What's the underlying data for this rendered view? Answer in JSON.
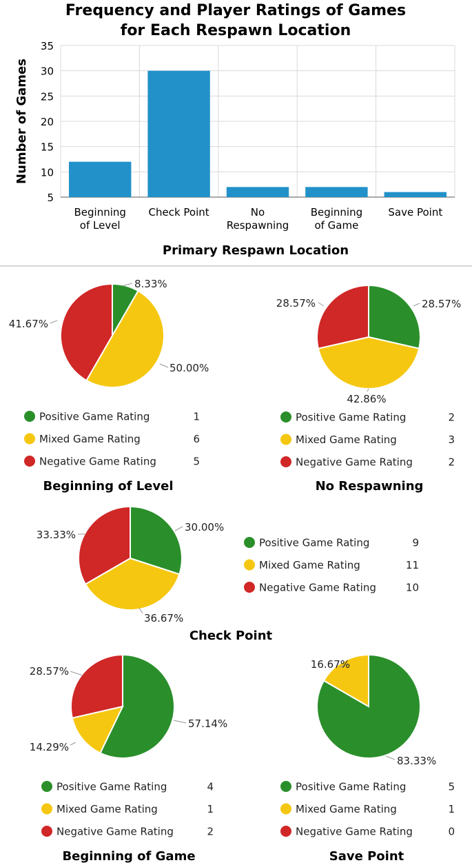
{
  "colors": {
    "bar": "#2291c9",
    "positive": "#2a8f2a",
    "mixed": "#f5c710",
    "negative": "#d02727",
    "grid": "#d9d9d9",
    "divider": "#c8c8c8"
  },
  "chart_data": [
    {
      "type": "bar",
      "title": [
        "Frequency and Player Ratings of Games",
        "for Each Respawn Location"
      ],
      "xlabel": "Primary Respawn Location",
      "ylabel": "Number of Games",
      "ylim": [
        5,
        35
      ],
      "yticks": [
        "35",
        "30",
        "25",
        "20",
        "15",
        "10",
        "5"
      ],
      "categories": [
        [
          "Beginning",
          "of Level"
        ],
        [
          "Check Point"
        ],
        [
          "No",
          "Respawning"
        ],
        [
          "Beginning",
          "of Game"
        ],
        [
          "Save Point"
        ]
      ],
      "values": [
        12,
        30,
        7,
        7,
        6
      ],
      "grid": true
    },
    {
      "type": "pie",
      "title": "Beginning of Level",
      "slices": [
        {
          "label": "Positive Game Rating",
          "value": 1,
          "percent": "8.33%",
          "color": "positive"
        },
        {
          "label": "Mixed Game Rating",
          "value": 6,
          "percent": "50.00%",
          "color": "mixed"
        },
        {
          "label": "Negative Game Rating",
          "value": 5,
          "percent": "41.67%",
          "color": "negative"
        }
      ]
    },
    {
      "type": "pie",
      "title": "No Respawning",
      "slices": [
        {
          "label": "Positive Game Rating",
          "value": 2,
          "percent": "28.57%",
          "color": "positive"
        },
        {
          "label": "Mixed Game Rating",
          "value": 3,
          "percent": "42.86%",
          "color": "mixed"
        },
        {
          "label": "Negative Game Rating",
          "value": 2,
          "percent": "28.57%",
          "color": "negative"
        }
      ]
    },
    {
      "type": "pie",
      "title": "Check Point",
      "slices": [
        {
          "label": "Positive Game Rating",
          "value": 9,
          "percent": "30.00%",
          "color": "positive"
        },
        {
          "label": "Mixed Game Rating",
          "value": 11,
          "percent": "36.67%",
          "color": "mixed"
        },
        {
          "label": "Negative Game Rating",
          "value": 10,
          "percent": "33.33%",
          "color": "negative"
        }
      ]
    },
    {
      "type": "pie",
      "title": "Beginning of Game",
      "slices": [
        {
          "label": "Positive Game Rating",
          "value": 4,
          "percent": "57.14%",
          "color": "positive"
        },
        {
          "label": "Mixed Game Rating",
          "value": 1,
          "percent": "14.29%",
          "color": "mixed"
        },
        {
          "label": "Negative Game Rating",
          "value": 2,
          "percent": "28.57%",
          "color": "negative"
        }
      ]
    },
    {
      "type": "pie",
      "title": "Save Point",
      "slices": [
        {
          "label": "Positive Game Rating",
          "value": 5,
          "percent": "83.33%",
          "color": "positive"
        },
        {
          "label": "Mixed Game Rating",
          "value": 1,
          "percent": "16.67%",
          "color": "mixed"
        },
        {
          "label": "Negative Game Rating",
          "value": 0,
          "percent": "",
          "color": "negative"
        }
      ]
    }
  ]
}
